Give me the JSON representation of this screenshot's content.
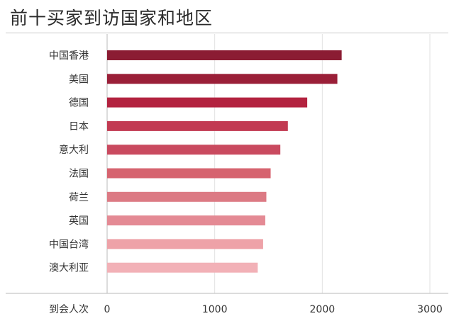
{
  "title": "前十买家到访国家和地区",
  "chart_data": {
    "type": "bar",
    "orientation": "horizontal",
    "categories": [
      "中国香港",
      "美国",
      "德国",
      "日本",
      "意大利",
      "法国",
      "荷兰",
      "英国",
      "中国台湾",
      "澳大利亚"
    ],
    "values": [
      2180,
      2140,
      1860,
      1680,
      1610,
      1520,
      1480,
      1470,
      1450,
      1400
    ],
    "colors": [
      "#8b1c33",
      "#9a1f38",
      "#b3223f",
      "#c23a52",
      "#c94a5f",
      "#d6636f",
      "#dc7a84",
      "#e48a94",
      "#eea2a8",
      "#f2b1b7"
    ],
    "xlabel": "到会人次",
    "xticks": [
      0,
      1000,
      2000,
      3000
    ],
    "xlim": [
      0,
      3000
    ],
    "grid": true
  }
}
